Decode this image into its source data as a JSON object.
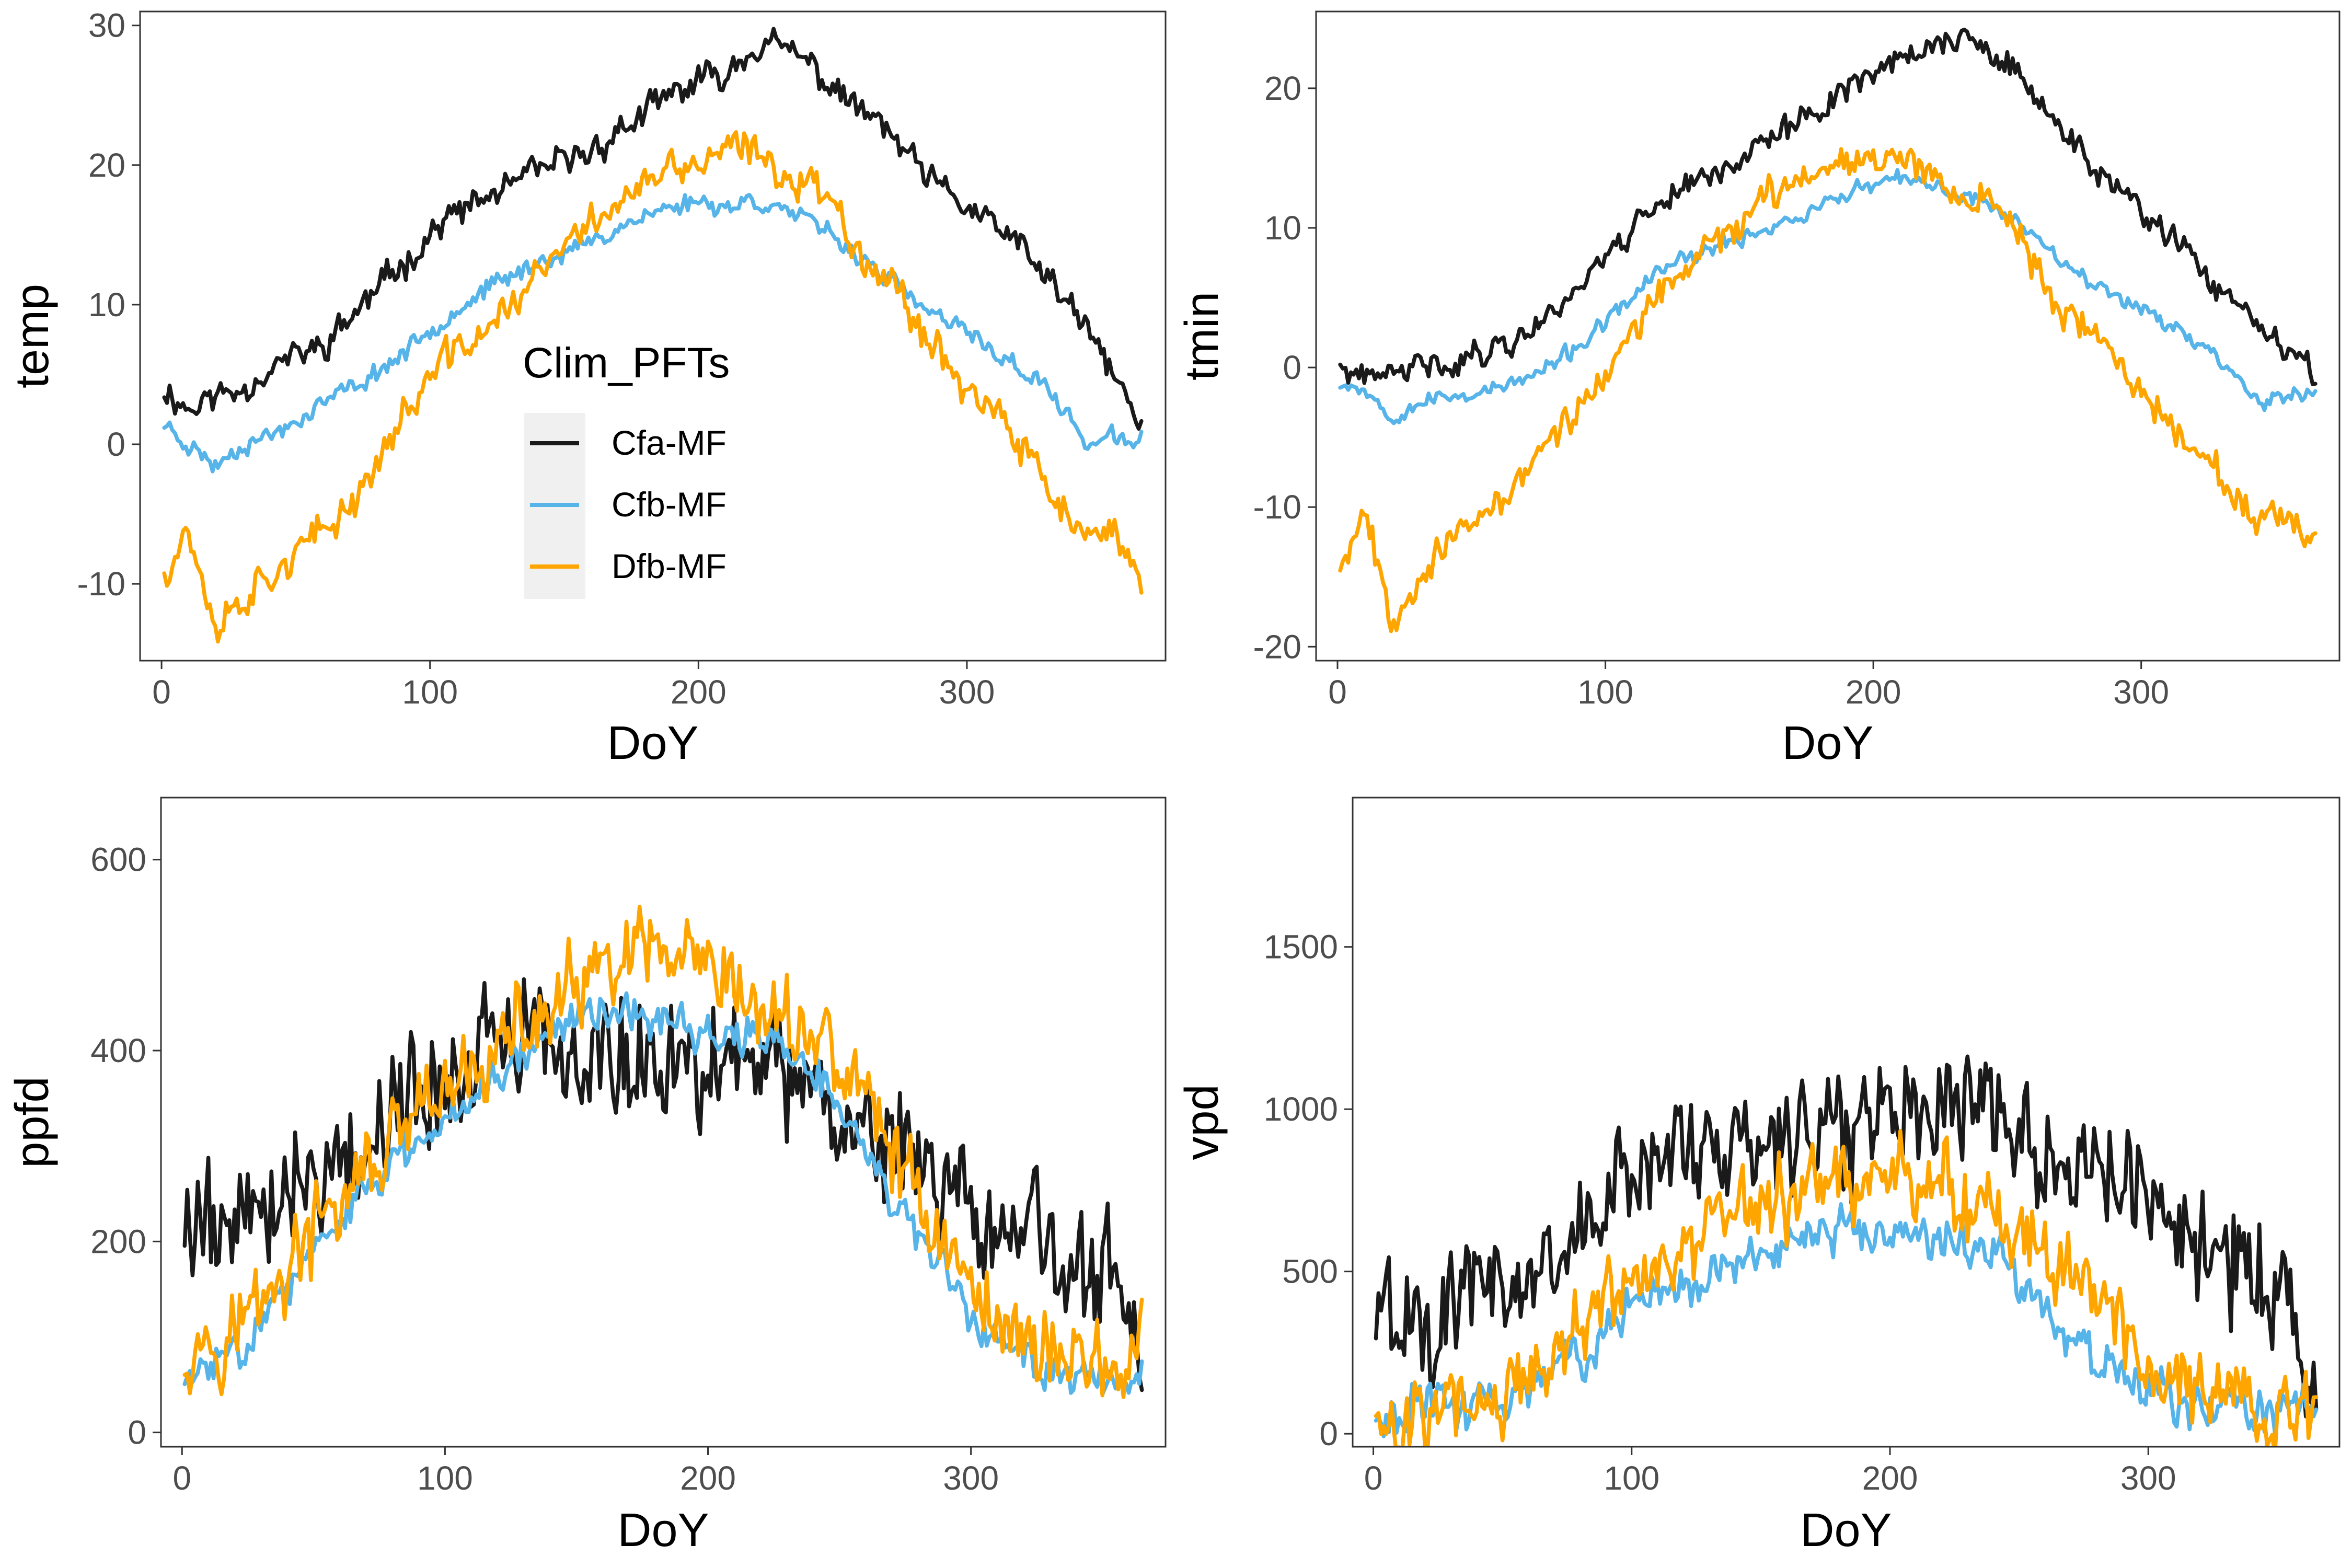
{
  "colors": {
    "Cfa-MF": "#1a1a1a",
    "Cfb-MF": "#56b4e9",
    "Dfb-MF": "#ffa500"
  },
  "legend": {
    "title": "Clim_PFTs",
    "entries": [
      "Cfa-MF",
      "Cfb-MF",
      "Dfb-MF"
    ],
    "placement": "inside top-left panel, center-left"
  },
  "chart_data": [
    {
      "type": "line",
      "panel": "top-left",
      "xlabel": "DoY",
      "ylabel": "temp",
      "xlim": [
        -8,
        374
      ],
      "ylim": [
        -15.5,
        31
      ],
      "xticks": [
        0,
        100,
        200,
        300
      ],
      "yticks": [
        -10,
        0,
        10,
        20,
        30
      ],
      "ytick_labels": [
        "-10",
        "0",
        "10",
        "20",
        "30"
      ],
      "x_knots": [
        1,
        10,
        20,
        30,
        45,
        60,
        75,
        90,
        105,
        120,
        140,
        160,
        175,
        190,
        200,
        210,
        220,
        230,
        240,
        250,
        260,
        270,
        285,
        300,
        315,
        330,
        345,
        355,
        365
      ],
      "series": [
        {
          "name": "Cfa-MF",
          "noise": 1.3,
          "seed": 11,
          "values": [
            4,
            2.5,
            3.5,
            4,
            6,
            7,
            10,
            13,
            16,
            17.5,
            19.5,
            21,
            23,
            25,
            26,
            26.5,
            28.5,
            28.5,
            27.5,
            25.5,
            24,
            22.5,
            19,
            17,
            15,
            12,
            8,
            5,
            1
          ]
        },
        {
          "name": "Cfb-MF",
          "noise": 0.8,
          "seed": 23,
          "values": [
            1.5,
            0,
            -1.5,
            0,
            1,
            3,
            4.5,
            6.5,
            9,
            11,
            13,
            14.5,
            16,
            17,
            17.5,
            17,
            17.5,
            17,
            16,
            15,
            13.5,
            12,
            9.5,
            8,
            6,
            4,
            0,
            0.5,
            0
          ]
        },
        {
          "name": "Dfb-MF",
          "noise": 1.6,
          "seed": 37,
          "values": [
            -9,
            -6,
            -13,
            -11,
            -8.5,
            -6.5,
            -3,
            2,
            6,
            8,
            12,
            16,
            18,
            19.5,
            20,
            21,
            21,
            19.5,
            19,
            17.5,
            14,
            12,
            8,
            4,
            1,
            -3,
            -7,
            -7,
            -9
          ]
        }
      ]
    },
    {
      "type": "line",
      "panel": "top-right",
      "xlabel": "DoY",
      "ylabel": "tmin",
      "xlim": [
        -8,
        374
      ],
      "ylim": [
        -21,
        25.5
      ],
      "xticks": [
        0,
        100,
        200,
        300
      ],
      "yticks": [
        -20,
        -10,
        0,
        10,
        20
      ],
      "ytick_labels": [
        "-20",
        "-10",
        "0",
        "10",
        "20"
      ],
      "x_knots": [
        1,
        10,
        20,
        30,
        45,
        60,
        75,
        90,
        105,
        120,
        140,
        160,
        175,
        190,
        200,
        210,
        220,
        230,
        240,
        250,
        260,
        270,
        285,
        300,
        315,
        330,
        345,
        355,
        365
      ],
      "series": [
        {
          "name": "Cfa-MF",
          "noise": 1.2,
          "seed": 41,
          "values": [
            0,
            -1,
            -0.5,
            0,
            0.5,
            1.5,
            3,
            6,
            9,
            12,
            14,
            16,
            18,
            20,
            21.5,
            22,
            23,
            23.5,
            23,
            21.5,
            19.5,
            17,
            14,
            11,
            8.5,
            5.5,
            2.5,
            1,
            -1
          ]
        },
        {
          "name": "Cfb-MF",
          "noise": 0.7,
          "seed": 53,
          "values": [
            -1,
            -1.5,
            -3.5,
            -2.5,
            -2,
            -1.5,
            -0.5,
            1.5,
            4,
            7,
            8.5,
            10,
            11,
            12.5,
            13,
            13.5,
            13,
            12.5,
            12,
            11,
            9.5,
            8,
            5.5,
            4.5,
            2.5,
            0.5,
            -2.5,
            -2,
            -2
          ]
        },
        {
          "name": "Dfb-MF",
          "noise": 1.4,
          "seed": 67,
          "values": [
            -14,
            -10,
            -18,
            -15,
            -12,
            -10,
            -6,
            -3,
            1,
            5,
            9,
            12,
            14,
            15,
            15.5,
            15,
            14,
            13,
            12,
            11,
            7.5,
            4,
            2,
            -2,
            -4.5,
            -8,
            -11.5,
            -11,
            -13
          ]
        }
      ]
    },
    {
      "type": "line",
      "panel": "bottom-left",
      "xlabel": "DoY",
      "ylabel": "ppfd",
      "xlim": [
        -8,
        374
      ],
      "ylim": [
        -15,
        665
      ],
      "xticks": [
        0,
        100,
        200,
        300
      ],
      "yticks": [
        0,
        200,
        400,
        600
      ],
      "ytick_labels": [
        "0",
        "200",
        "400",
        "600"
      ],
      "x_knots": [
        1,
        20,
        40,
        60,
        80,
        100,
        120,
        140,
        160,
        180,
        200,
        220,
        240,
        260,
        280,
        300,
        320,
        340,
        355,
        365
      ],
      "series": [
        {
          "name": "Cfa-MF",
          "noise": 80,
          "seed": 79,
          "values": [
            220,
            230,
            260,
            290,
            330,
            380,
            400,
            400,
            400,
            380,
            400,
            380,
            360,
            320,
            280,
            230,
            200,
            170,
            150,
            60
          ]
        },
        {
          "name": "Cfb-MF",
          "noise": 25,
          "seed": 83,
          "values": [
            50,
            90,
            150,
            220,
            280,
            330,
            380,
            420,
            450,
            430,
            420,
            410,
            380,
            300,
            200,
            120,
            80,
            60,
            55,
            60
          ]
        },
        {
          "name": "Dfb-MF",
          "noise": 55,
          "seed": 97,
          "values": [
            95,
            110,
            170,
            240,
            300,
            350,
            400,
            440,
            480,
            500,
            470,
            440,
            420,
            350,
            250,
            150,
            100,
            80,
            70,
            75
          ]
        }
      ]
    },
    {
      "type": "line",
      "panel": "bottom-right",
      "xlabel": "DoY",
      "ylabel": "vpd",
      "xlim": [
        -8,
        374
      ],
      "ylim": [
        -40,
        1960
      ],
      "xticks": [
        0,
        100,
        200,
        300
      ],
      "yticks": [
        0,
        500,
        1000,
        1500
      ],
      "ytick_labels": [
        "0",
        "500",
        "1000",
        "1500"
      ],
      "x_knots": [
        1,
        20,
        40,
        60,
        80,
        100,
        120,
        140,
        160,
        180,
        200,
        220,
        240,
        260,
        280,
        300,
        320,
        340,
        355,
        365
      ],
      "series": [
        {
          "name": "Cfa-MF",
          "noise": 220,
          "seed": 101,
          "values": [
            360,
            380,
            420,
            480,
            620,
            820,
            900,
            880,
            920,
            960,
            1000,
            1050,
            1000,
            900,
            800,
            700,
            600,
            480,
            380,
            100
          ]
        },
        {
          "name": "Cfb-MF",
          "noise": 90,
          "seed": 113,
          "values": [
            60,
            80,
            100,
            150,
            250,
            380,
            470,
            520,
            580,
            620,
            620,
            600,
            560,
            400,
            220,
            130,
            90,
            70,
            60,
            70
          ]
        },
        {
          "name": "Dfb-MF",
          "noise": 150,
          "seed": 127,
          "values": [
            50,
            80,
            110,
            170,
            320,
            480,
            580,
            650,
            740,
            800,
            780,
            760,
            680,
            560,
            420,
            220,
            150,
            90,
            60,
            50
          ]
        }
      ]
    }
  ]
}
